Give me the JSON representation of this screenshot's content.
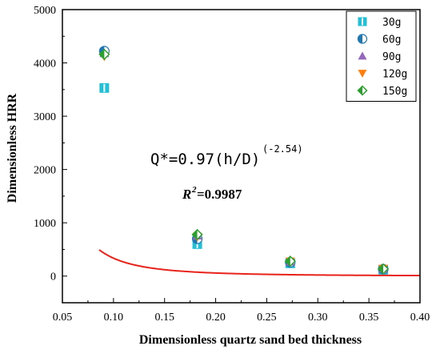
{
  "chart_data": {
    "type": "scatter",
    "title": "",
    "xlabel": "Dimensionless quartz sand bed thickness",
    "ylabel": "Dimensionless HRR",
    "xlim": [
      0.05,
      0.4
    ],
    "ylim": [
      -500,
      5000
    ],
    "x_ticks": [
      0.05,
      0.1,
      0.15,
      0.2,
      0.25,
      0.3,
      0.35,
      0.4
    ],
    "x_tick_labels": [
      "0.05",
      "0.10",
      "0.15",
      "0.20",
      "0.25",
      "0.30",
      "0.35",
      "0.40"
    ],
    "y_ticks": [
      0,
      1000,
      2000,
      3000,
      4000,
      5000
    ],
    "y_tick_labels": [
      "0",
      "1000",
      "2000",
      "3000",
      "4000",
      "5000"
    ],
    "grid": false,
    "legend_position": "top-right",
    "series": [
      {
        "name": "30g",
        "marker": "square-half",
        "color": "#22c0d6",
        "points": [
          [
            0.091,
            3530
          ],
          [
            0.182,
            600
          ],
          [
            0.273,
            240
          ],
          [
            0.364,
            120
          ]
        ]
      },
      {
        "name": "60g",
        "marker": "circle-half",
        "color": "#1f77b4",
        "points": [
          [
            0.091,
            4220
          ],
          [
            0.182,
            700
          ],
          [
            0.273,
            260
          ],
          [
            0.364,
            130
          ]
        ]
      },
      {
        "name": "90g",
        "marker": "triangle-up",
        "color": "#9467bd",
        "points": [
          [
            0.091,
            4180
          ],
          [
            0.182,
            760
          ],
          [
            0.273,
            270
          ],
          [
            0.364,
            140
          ]
        ]
      },
      {
        "name": "120g",
        "marker": "triangle-down",
        "color": "#ff7f0e",
        "points": [
          [
            0.091,
            4120
          ],
          [
            0.182,
            740
          ],
          [
            0.273,
            275
          ],
          [
            0.364,
            140
          ]
        ]
      },
      {
        "name": "150g",
        "marker": "diamond-half",
        "color": "#2ca02c",
        "points": [
          [
            0.091,
            4160
          ],
          [
            0.182,
            780
          ],
          [
            0.273,
            280
          ],
          [
            0.364,
            135
          ]
        ]
      }
    ],
    "fit": {
      "coefficient": 0.97,
      "exponent": -2.54,
      "color": "#e8231b",
      "x_range": [
        0.086,
        0.4
      ]
    },
    "annotations": {
      "equation_main": "Q*=0.97(h/D)",
      "equation_exponent": "(-2.54)",
      "r2_symbol": "R",
      "r2_power": "2",
      "r2_value": "=0.9987"
    }
  }
}
